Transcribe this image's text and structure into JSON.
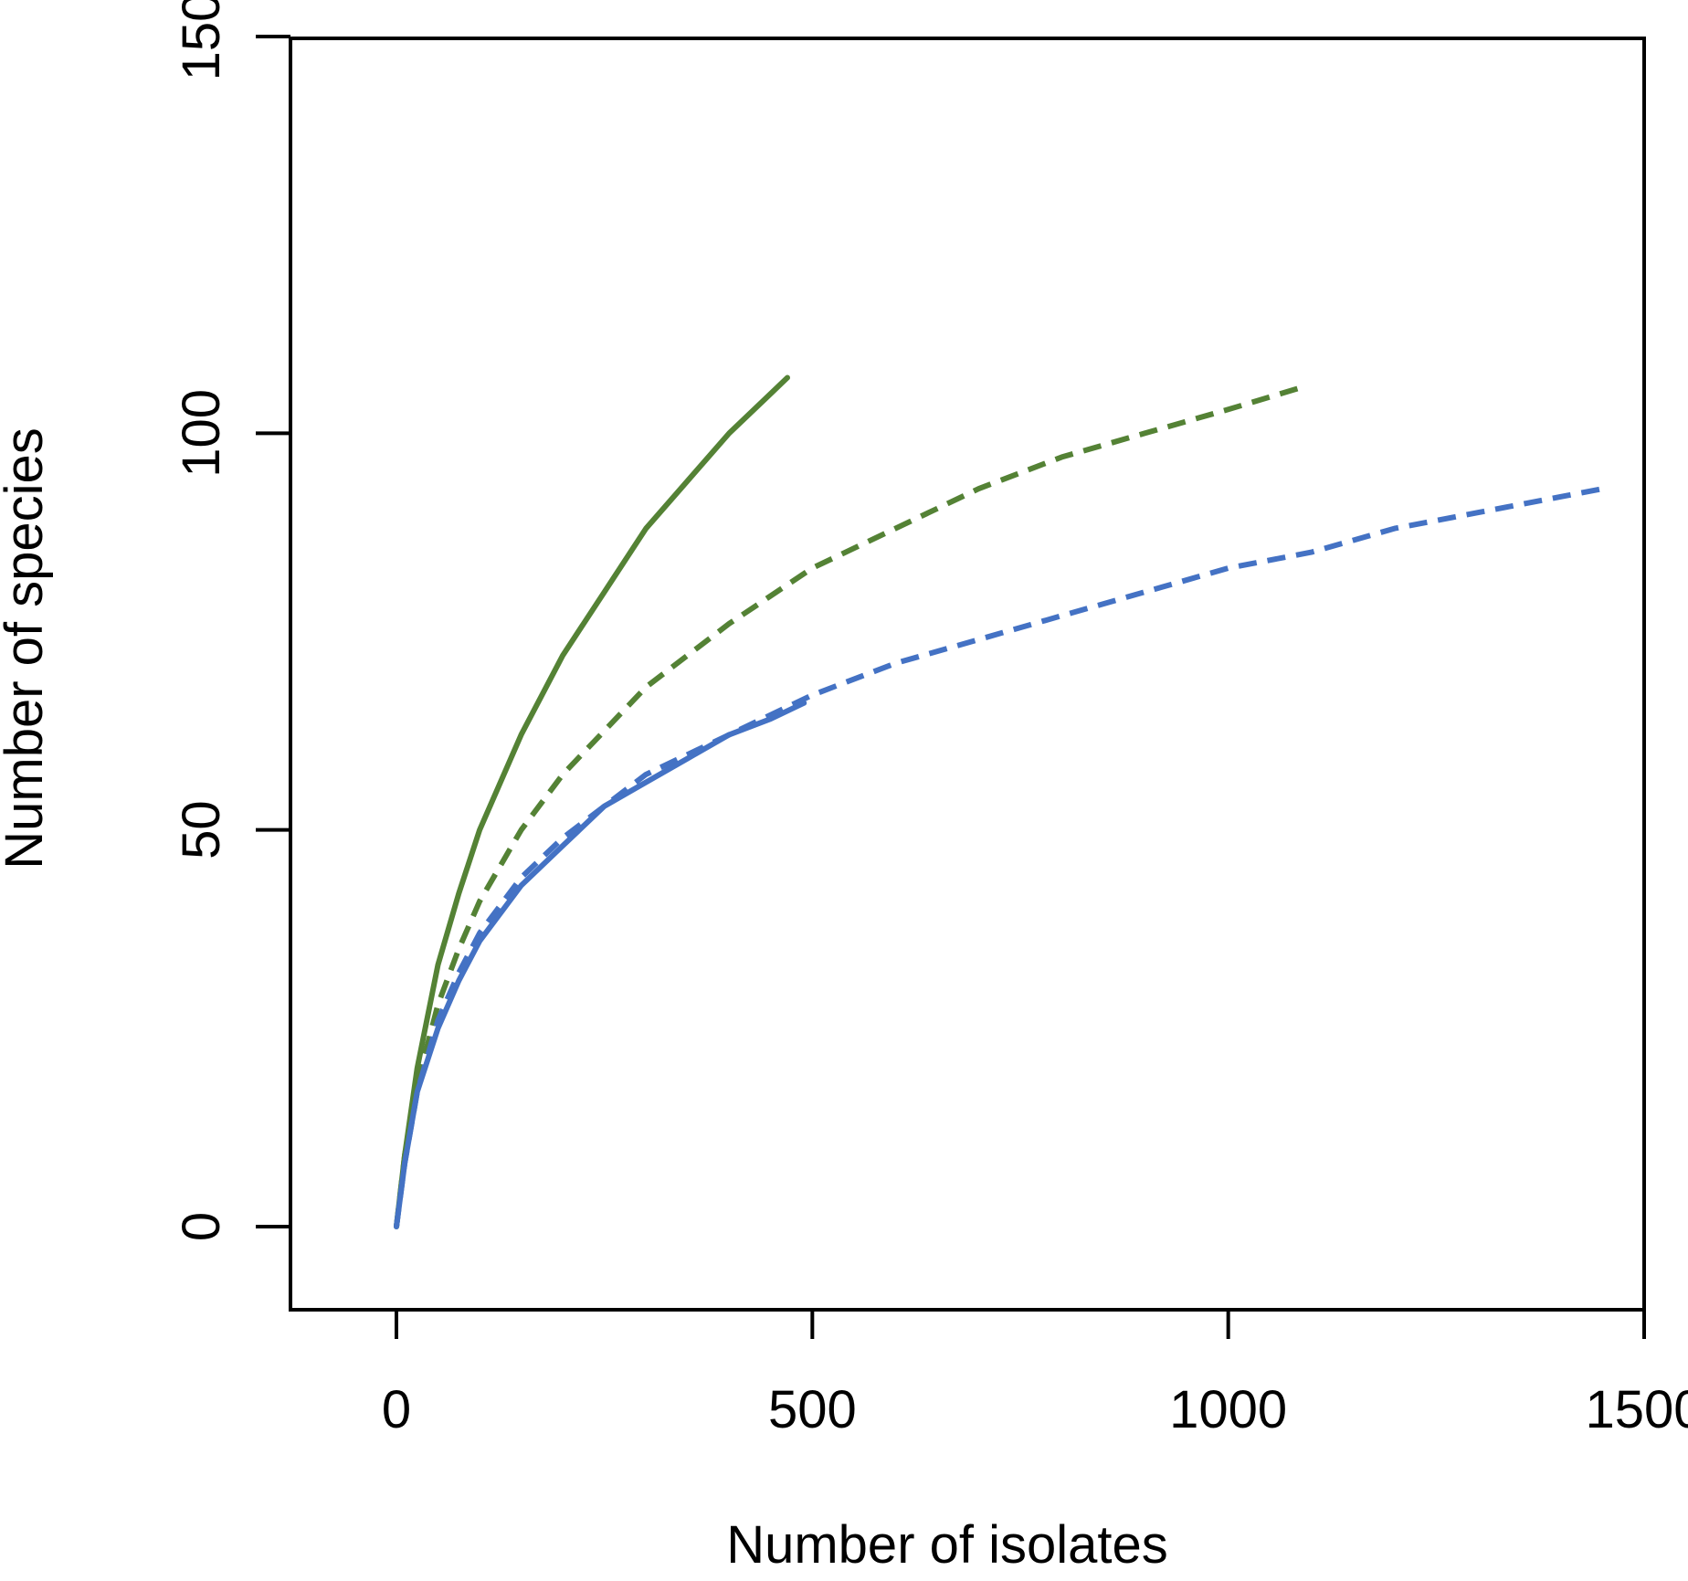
{
  "chart_data": {
    "type": "line",
    "xlabel": "Number of isolates",
    "ylabel": "Number of species",
    "xlim": [
      -130,
      1500
    ],
    "ylim": [
      -20,
      150
    ],
    "x_ticks": [
      0,
      500,
      1000,
      1500
    ],
    "y_ticks": [
      0,
      50,
      100,
      150
    ],
    "grid": false,
    "series": [
      {
        "color": "#548235",
        "dash": "solid",
        "points": [
          [
            0,
            0
          ],
          [
            10,
            9
          ],
          [
            25,
            20
          ],
          [
            50,
            33
          ],
          [
            75,
            42
          ],
          [
            100,
            50
          ],
          [
            150,
            62
          ],
          [
            200,
            72
          ],
          [
            250,
            80
          ],
          [
            300,
            88
          ],
          [
            350,
            94
          ],
          [
            400,
            100
          ],
          [
            450,
            105
          ],
          [
            470,
            107
          ]
        ]
      },
      {
        "color": "#548235",
        "dash": "dashed",
        "points": [
          [
            0,
            0
          ],
          [
            10,
            9
          ],
          [
            25,
            18
          ],
          [
            50,
            28
          ],
          [
            75,
            35
          ],
          [
            100,
            41
          ],
          [
            150,
            50
          ],
          [
            200,
            57
          ],
          [
            300,
            68
          ],
          [
            400,
            76
          ],
          [
            500,
            83
          ],
          [
            600,
            88
          ],
          [
            700,
            93
          ],
          [
            800,
            97
          ],
          [
            900,
            100
          ],
          [
            1000,
            103
          ],
          [
            1095,
            106
          ]
        ]
      },
      {
        "color": "#4472c4",
        "dash": "solid",
        "points": [
          [
            0,
            0
          ],
          [
            10,
            8
          ],
          [
            25,
            17
          ],
          [
            50,
            25
          ],
          [
            75,
            31
          ],
          [
            100,
            36
          ],
          [
            150,
            43
          ],
          [
            200,
            48
          ],
          [
            250,
            53
          ],
          [
            300,
            56
          ],
          [
            350,
            59
          ],
          [
            400,
            62
          ],
          [
            450,
            64
          ],
          [
            490,
            66
          ]
        ]
      },
      {
        "color": "#4472c4",
        "dash": "dashed",
        "points": [
          [
            0,
            0
          ],
          [
            10,
            8
          ],
          [
            25,
            17
          ],
          [
            50,
            26
          ],
          [
            75,
            32
          ],
          [
            100,
            37
          ],
          [
            150,
            44
          ],
          [
            200,
            49
          ],
          [
            300,
            57
          ],
          [
            400,
            62
          ],
          [
            500,
            67
          ],
          [
            600,
            71
          ],
          [
            700,
            74
          ],
          [
            800,
            77
          ],
          [
            900,
            80
          ],
          [
            1000,
            83
          ],
          [
            1100,
            85
          ],
          [
            1200,
            88
          ],
          [
            1300,
            90
          ],
          [
            1400,
            92
          ],
          [
            1450,
            93
          ]
        ]
      }
    ]
  }
}
